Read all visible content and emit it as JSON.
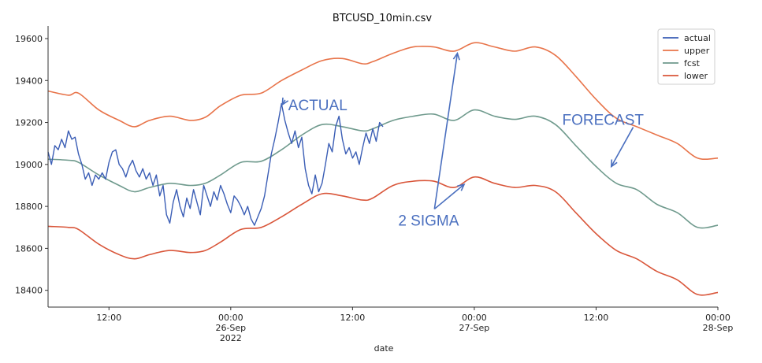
{
  "chart_data": {
    "type": "line",
    "title": "BTCUSD_10min.csv",
    "xlabel": "date",
    "ylabel": "",
    "ylim": [
      18320,
      19660
    ],
    "xlim": [
      "2022-09-25 06:00",
      "2022-09-28 00:00"
    ],
    "yticks": [
      18400,
      18600,
      18800,
      19000,
      19200,
      19400,
      19600
    ],
    "xticks": [
      {
        "x": "2022-09-25 12:00",
        "label": [
          "12:00"
        ]
      },
      {
        "x": "2022-09-26 00:00",
        "label": [
          "00:00",
          "26-Sep",
          "2022"
        ]
      },
      {
        "x": "2022-09-26 12:00",
        "label": [
          "12:00"
        ]
      },
      {
        "x": "2022-09-27 00:00",
        "label": [
          "00:00",
          "27-Sep"
        ]
      },
      {
        "x": "2022-09-27 12:00",
        "label": [
          "12:00"
        ]
      },
      {
        "x": "2022-09-28 00:00",
        "label": [
          "00:00",
          "28-Sep"
        ]
      }
    ],
    "grid": false,
    "legend_position": "upper right",
    "series": [
      {
        "name": "actual",
        "color": "#3a5db5",
        "points": [
          [
            "2022-09-25 06:00",
            19060
          ],
          [
            "2022-09-25 06:20",
            19000
          ],
          [
            "2022-09-25 06:40",
            19090
          ],
          [
            "2022-09-25 07:00",
            19070
          ],
          [
            "2022-09-25 07:20",
            19120
          ],
          [
            "2022-09-25 07:40",
            19080
          ],
          [
            "2022-09-25 08:00",
            19160
          ],
          [
            "2022-09-25 08:20",
            19120
          ],
          [
            "2022-09-25 08:40",
            19130
          ],
          [
            "2022-09-25 09:00",
            19050
          ],
          [
            "2022-09-25 09:20",
            19000
          ],
          [
            "2022-09-25 09:40",
            18930
          ],
          [
            "2022-09-25 10:00",
            18960
          ],
          [
            "2022-09-25 10:20",
            18900
          ],
          [
            "2022-09-25 10:40",
            18950
          ],
          [
            "2022-09-25 11:00",
            18930
          ],
          [
            "2022-09-25 11:20",
            18960
          ],
          [
            "2022-09-25 11:40",
            18930
          ],
          [
            "2022-09-25 12:00",
            19010
          ],
          [
            "2022-09-25 12:20",
            19060
          ],
          [
            "2022-09-25 12:40",
            19070
          ],
          [
            "2022-09-25 13:00",
            19000
          ],
          [
            "2022-09-25 13:20",
            18980
          ],
          [
            "2022-09-25 13:40",
            18940
          ],
          [
            "2022-09-25 14:00",
            18990
          ],
          [
            "2022-09-25 14:20",
            19020
          ],
          [
            "2022-09-25 14:40",
            18970
          ],
          [
            "2022-09-25 15:00",
            18940
          ],
          [
            "2022-09-25 15:20",
            18980
          ],
          [
            "2022-09-25 15:40",
            18930
          ],
          [
            "2022-09-25 16:00",
            18960
          ],
          [
            "2022-09-25 16:20",
            18900
          ],
          [
            "2022-09-25 16:40",
            18950
          ],
          [
            "2022-09-25 17:00",
            18850
          ],
          [
            "2022-09-25 17:20",
            18900
          ],
          [
            "2022-09-25 17:40",
            18760
          ],
          [
            "2022-09-25 18:00",
            18720
          ],
          [
            "2022-09-25 18:20",
            18820
          ],
          [
            "2022-09-25 18:40",
            18880
          ],
          [
            "2022-09-25 19:00",
            18800
          ],
          [
            "2022-09-25 19:20",
            18750
          ],
          [
            "2022-09-25 19:40",
            18840
          ],
          [
            "2022-09-25 20:00",
            18790
          ],
          [
            "2022-09-25 20:20",
            18880
          ],
          [
            "2022-09-25 20:40",
            18820
          ],
          [
            "2022-09-25 21:00",
            18760
          ],
          [
            "2022-09-25 21:20",
            18900
          ],
          [
            "2022-09-25 21:40",
            18850
          ],
          [
            "2022-09-25 22:00",
            18800
          ],
          [
            "2022-09-25 22:20",
            18870
          ],
          [
            "2022-09-25 22:40",
            18830
          ],
          [
            "2022-09-25 23:00",
            18900
          ],
          [
            "2022-09-25 23:20",
            18860
          ],
          [
            "2022-09-25 23:40",
            18810
          ],
          [
            "2022-09-26 00:00",
            18770
          ],
          [
            "2022-09-26 00:20",
            18850
          ],
          [
            "2022-09-26 00:40",
            18830
          ],
          [
            "2022-09-26 01:00",
            18800
          ],
          [
            "2022-09-26 01:20",
            18760
          ],
          [
            "2022-09-26 01:40",
            18800
          ],
          [
            "2022-09-26 02:00",
            18740
          ],
          [
            "2022-09-26 02:20",
            18710
          ],
          [
            "2022-09-26 02:40",
            18750
          ],
          [
            "2022-09-26 03:00",
            18790
          ],
          [
            "2022-09-26 03:20",
            18850
          ],
          [
            "2022-09-26 03:40",
            18950
          ],
          [
            "2022-09-26 04:00",
            19050
          ],
          [
            "2022-09-26 04:20",
            19120
          ],
          [
            "2022-09-26 04:40",
            19200
          ],
          [
            "2022-09-26 05:00",
            19290
          ],
          [
            "2022-09-26 05:20",
            19210
          ],
          [
            "2022-09-26 05:40",
            19150
          ],
          [
            "2022-09-26 06:00",
            19100
          ],
          [
            "2022-09-26 06:20",
            19160
          ],
          [
            "2022-09-26 06:40",
            19080
          ],
          [
            "2022-09-26 07:00",
            19130
          ],
          [
            "2022-09-26 07:20",
            18980
          ],
          [
            "2022-09-26 07:40",
            18900
          ],
          [
            "2022-09-26 08:00",
            18860
          ],
          [
            "2022-09-26 08:20",
            18950
          ],
          [
            "2022-09-26 08:40",
            18870
          ],
          [
            "2022-09-26 09:00",
            18910
          ],
          [
            "2022-09-26 09:20",
            19000
          ],
          [
            "2022-09-26 09:40",
            19100
          ],
          [
            "2022-09-26 10:00",
            19060
          ],
          [
            "2022-09-26 10:20",
            19180
          ],
          [
            "2022-09-26 10:40",
            19230
          ],
          [
            "2022-09-26 11:00",
            19120
          ],
          [
            "2022-09-26 11:20",
            19050
          ],
          [
            "2022-09-26 11:40",
            19080
          ],
          [
            "2022-09-26 12:00",
            19030
          ],
          [
            "2022-09-26 12:20",
            19060
          ],
          [
            "2022-09-26 12:40",
            19000
          ],
          [
            "2022-09-26 13:00",
            19080
          ],
          [
            "2022-09-26 13:20",
            19150
          ],
          [
            "2022-09-26 13:40",
            19100
          ],
          [
            "2022-09-26 14:00",
            19170
          ],
          [
            "2022-09-26 14:20",
            19110
          ],
          [
            "2022-09-26 14:40",
            19200
          ],
          [
            "2022-09-26 15:00",
            19180
          ]
        ]
      },
      {
        "name": "upper",
        "color": "#e8744a",
        "points": [
          [
            "2022-09-25 06:00",
            19350
          ],
          [
            "2022-09-25 08:00",
            19330
          ],
          [
            "2022-09-25 09:00",
            19340
          ],
          [
            "2022-09-25 11:00",
            19260
          ],
          [
            "2022-09-25 13:00",
            19210
          ],
          [
            "2022-09-25 14:30",
            19180
          ],
          [
            "2022-09-25 16:00",
            19210
          ],
          [
            "2022-09-25 18:00",
            19230
          ],
          [
            "2022-09-25 20:00",
            19210
          ],
          [
            "2022-09-25 21:30",
            19225
          ],
          [
            "2022-09-25 23:00",
            19280
          ],
          [
            "2022-09-26 01:00",
            19330
          ],
          [
            "2022-09-26 03:00",
            19340
          ],
          [
            "2022-09-26 05:00",
            19400
          ],
          [
            "2022-09-26 07:00",
            19450
          ],
          [
            "2022-09-26 09:00",
            19495
          ],
          [
            "2022-09-26 11:00",
            19505
          ],
          [
            "2022-09-26 13:00",
            19480
          ],
          [
            "2022-09-26 14:00",
            19490
          ],
          [
            "2022-09-26 16:00",
            19530
          ],
          [
            "2022-09-26 18:00",
            19560
          ],
          [
            "2022-09-26 20:00",
            19560
          ],
          [
            "2022-09-26 22:00",
            19540
          ],
          [
            "2022-09-27 00:00",
            19580
          ],
          [
            "2022-09-27 02:00",
            19560
          ],
          [
            "2022-09-27 04:00",
            19540
          ],
          [
            "2022-09-27 06:00",
            19560
          ],
          [
            "2022-09-27 08:00",
            19520
          ],
          [
            "2022-09-27 10:00",
            19420
          ],
          [
            "2022-09-27 12:00",
            19310
          ],
          [
            "2022-09-27 14:00",
            19220
          ],
          [
            "2022-09-27 16:00",
            19180
          ],
          [
            "2022-09-27 18:00",
            19140
          ],
          [
            "2022-09-27 20:00",
            19100
          ],
          [
            "2022-09-27 22:00",
            19030
          ],
          [
            "2022-09-28 00:00",
            19030
          ]
        ]
      },
      {
        "name": "fcst",
        "color": "#6f9a8d",
        "points": [
          [
            "2022-09-25 06:00",
            19025
          ],
          [
            "2022-09-25 08:00",
            19020
          ],
          [
            "2022-09-25 09:00",
            19010
          ],
          [
            "2022-09-25 11:00",
            18950
          ],
          [
            "2022-09-25 13:00",
            18900
          ],
          [
            "2022-09-25 14:30",
            18870
          ],
          [
            "2022-09-25 16:00",
            18890
          ],
          [
            "2022-09-25 18:00",
            18910
          ],
          [
            "2022-09-25 20:00",
            18900
          ],
          [
            "2022-09-25 21:30",
            18910
          ],
          [
            "2022-09-25 23:00",
            18950
          ],
          [
            "2022-09-26 01:00",
            19010
          ],
          [
            "2022-09-26 03:00",
            19015
          ],
          [
            "2022-09-26 05:00",
            19070
          ],
          [
            "2022-09-26 07:00",
            19140
          ],
          [
            "2022-09-26 09:00",
            19190
          ],
          [
            "2022-09-26 11:00",
            19180
          ],
          [
            "2022-09-26 13:00",
            19160
          ],
          [
            "2022-09-26 14:00",
            19170
          ],
          [
            "2022-09-26 16:00",
            19210
          ],
          [
            "2022-09-26 18:00",
            19230
          ],
          [
            "2022-09-26 20:00",
            19240
          ],
          [
            "2022-09-26 22:00",
            19210
          ],
          [
            "2022-09-27 00:00",
            19260
          ],
          [
            "2022-09-27 02:00",
            19230
          ],
          [
            "2022-09-27 04:00",
            19215
          ],
          [
            "2022-09-27 06:00",
            19230
          ],
          [
            "2022-09-27 08:00",
            19190
          ],
          [
            "2022-09-27 10:00",
            19090
          ],
          [
            "2022-09-27 12:00",
            18990
          ],
          [
            "2022-09-27 14:00",
            18910
          ],
          [
            "2022-09-27 16:00",
            18880
          ],
          [
            "2022-09-27 18:00",
            18810
          ],
          [
            "2022-09-27 20:00",
            18770
          ],
          [
            "2022-09-27 22:00",
            18700
          ],
          [
            "2022-09-28 00:00",
            18710
          ]
        ]
      },
      {
        "name": "lower",
        "color": "#d9563a",
        "points": [
          [
            "2022-09-25 06:00",
            18705
          ],
          [
            "2022-09-25 08:00",
            18700
          ],
          [
            "2022-09-25 09:00",
            18690
          ],
          [
            "2022-09-25 11:00",
            18620
          ],
          [
            "2022-09-25 13:00",
            18570
          ],
          [
            "2022-09-25 14:30",
            18550
          ],
          [
            "2022-09-25 16:00",
            18570
          ],
          [
            "2022-09-25 18:00",
            18590
          ],
          [
            "2022-09-25 20:00",
            18580
          ],
          [
            "2022-09-25 21:30",
            18590
          ],
          [
            "2022-09-25 23:00",
            18630
          ],
          [
            "2022-09-26 01:00",
            18690
          ],
          [
            "2022-09-26 03:00",
            18700
          ],
          [
            "2022-09-26 05:00",
            18750
          ],
          [
            "2022-09-26 07:00",
            18810
          ],
          [
            "2022-09-26 09:00",
            18860
          ],
          [
            "2022-09-26 11:00",
            18850
          ],
          [
            "2022-09-26 13:00",
            18830
          ],
          [
            "2022-09-26 14:00",
            18840
          ],
          [
            "2022-09-26 16:00",
            18900
          ],
          [
            "2022-09-26 18:00",
            18920
          ],
          [
            "2022-09-26 20:00",
            18920
          ],
          [
            "2022-09-26 22:00",
            18890
          ],
          [
            "2022-09-27 00:00",
            18940
          ],
          [
            "2022-09-27 02:00",
            18910
          ],
          [
            "2022-09-27 04:00",
            18890
          ],
          [
            "2022-09-27 06:00",
            18900
          ],
          [
            "2022-09-27 08:00",
            18870
          ],
          [
            "2022-09-27 10:00",
            18770
          ],
          [
            "2022-09-27 12:00",
            18670
          ],
          [
            "2022-09-27 14:00",
            18590
          ],
          [
            "2022-09-27 16:00",
            18550
          ],
          [
            "2022-09-27 18:00",
            18490
          ],
          [
            "2022-09-27 20:00",
            18450
          ],
          [
            "2022-09-27 22:00",
            18380
          ],
          [
            "2022-09-28 00:00",
            18390
          ]
        ]
      }
    ],
    "annotations": [
      {
        "text": "ACTUAL",
        "x": "2022-09-26 05:40",
        "y": 19285,
        "arrow_tip": [
          "2022-09-26 05:05",
          19285
        ]
      },
      {
        "text": "2 SIGMA",
        "x": "2022-09-26 16:30",
        "y": 18735,
        "arrow_tips": [
          [
            "2022-09-26 22:20",
            19530
          ],
          [
            "2022-09-26 23:00",
            18905
          ]
        ]
      },
      {
        "text": "FORECAST",
        "x": "2022-09-27 08:40",
        "y": 19215,
        "arrow_tip": [
          "2022-09-27 13:30",
          18990
        ]
      }
    ]
  }
}
